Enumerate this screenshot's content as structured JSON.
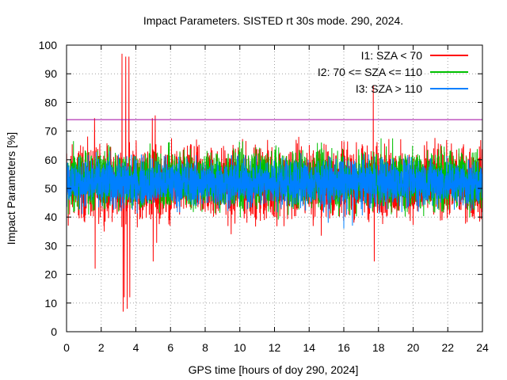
{
  "chart_data": {
    "type": "line",
    "title": "Impact Parameters. SISTED rt 30s mode. 290, 2024.",
    "xlabel": "GPS time [hours of doy 290, 2024]",
    "ylabel": "Impact Parameters [%]",
    "xlim": [
      0,
      24
    ],
    "ylim": [
      0,
      100
    ],
    "xticks": [
      0,
      2,
      4,
      6,
      8,
      10,
      12,
      14,
      16,
      18,
      20,
      22,
      24
    ],
    "yticks": [
      0,
      10,
      20,
      30,
      40,
      50,
      60,
      70,
      80,
      90,
      100
    ],
    "grid": true,
    "legend_position": "top-right",
    "threshold": {
      "value": 74,
      "color": "#a000a0"
    },
    "series": [
      {
        "name": "I1: SZA < 70",
        "color": "#ff0000",
        "baseline": 52,
        "noise": 6,
        "spikes": [
          {
            "x": 0.1,
            "y": 37
          },
          {
            "x": 1.62,
            "y": 74.5
          },
          {
            "x": 1.65,
            "y": 22
          },
          {
            "x": 3.2,
            "y": 97
          },
          {
            "x": 3.27,
            "y": 7
          },
          {
            "x": 3.33,
            "y": 12
          },
          {
            "x": 3.42,
            "y": 96
          },
          {
            "x": 3.5,
            "y": 8
          },
          {
            "x": 3.6,
            "y": 96
          },
          {
            "x": 3.65,
            "y": 12
          },
          {
            "x": 4.95,
            "y": 74.5
          },
          {
            "x": 5.0,
            "y": 24.5
          },
          {
            "x": 5.12,
            "y": 75.5
          },
          {
            "x": 5.2,
            "y": 31
          },
          {
            "x": 9.5,
            "y": 34
          },
          {
            "x": 13.4,
            "y": 68
          },
          {
            "x": 14.7,
            "y": 33.5
          },
          {
            "x": 17.7,
            "y": 86
          },
          {
            "x": 17.76,
            "y": 24.5
          }
        ]
      },
      {
        "name": "I2: 70 <= SZA <= 110",
        "color": "#00c000",
        "baseline": 53,
        "noise": 5,
        "spikes": [
          {
            "x": 0.1,
            "y": 41
          },
          {
            "x": 0.4,
            "y": 66.5
          },
          {
            "x": 1.1,
            "y": 63
          },
          {
            "x": 2.2,
            "y": 63
          },
          {
            "x": 3.0,
            "y": 43
          }
        ]
      },
      {
        "name": "I3: SZA > 110",
        "color": "#0080ff",
        "baseline": 52,
        "noise": 4,
        "spikes": [
          {
            "x": 0.05,
            "y": 59
          },
          {
            "x": 2.5,
            "y": 63
          },
          {
            "x": 3.3,
            "y": 43
          },
          {
            "x": 15.1,
            "y": 38
          },
          {
            "x": 16.0,
            "y": 36
          },
          {
            "x": 16.5,
            "y": 37
          },
          {
            "x": 18.2,
            "y": 61
          }
        ]
      }
    ]
  }
}
